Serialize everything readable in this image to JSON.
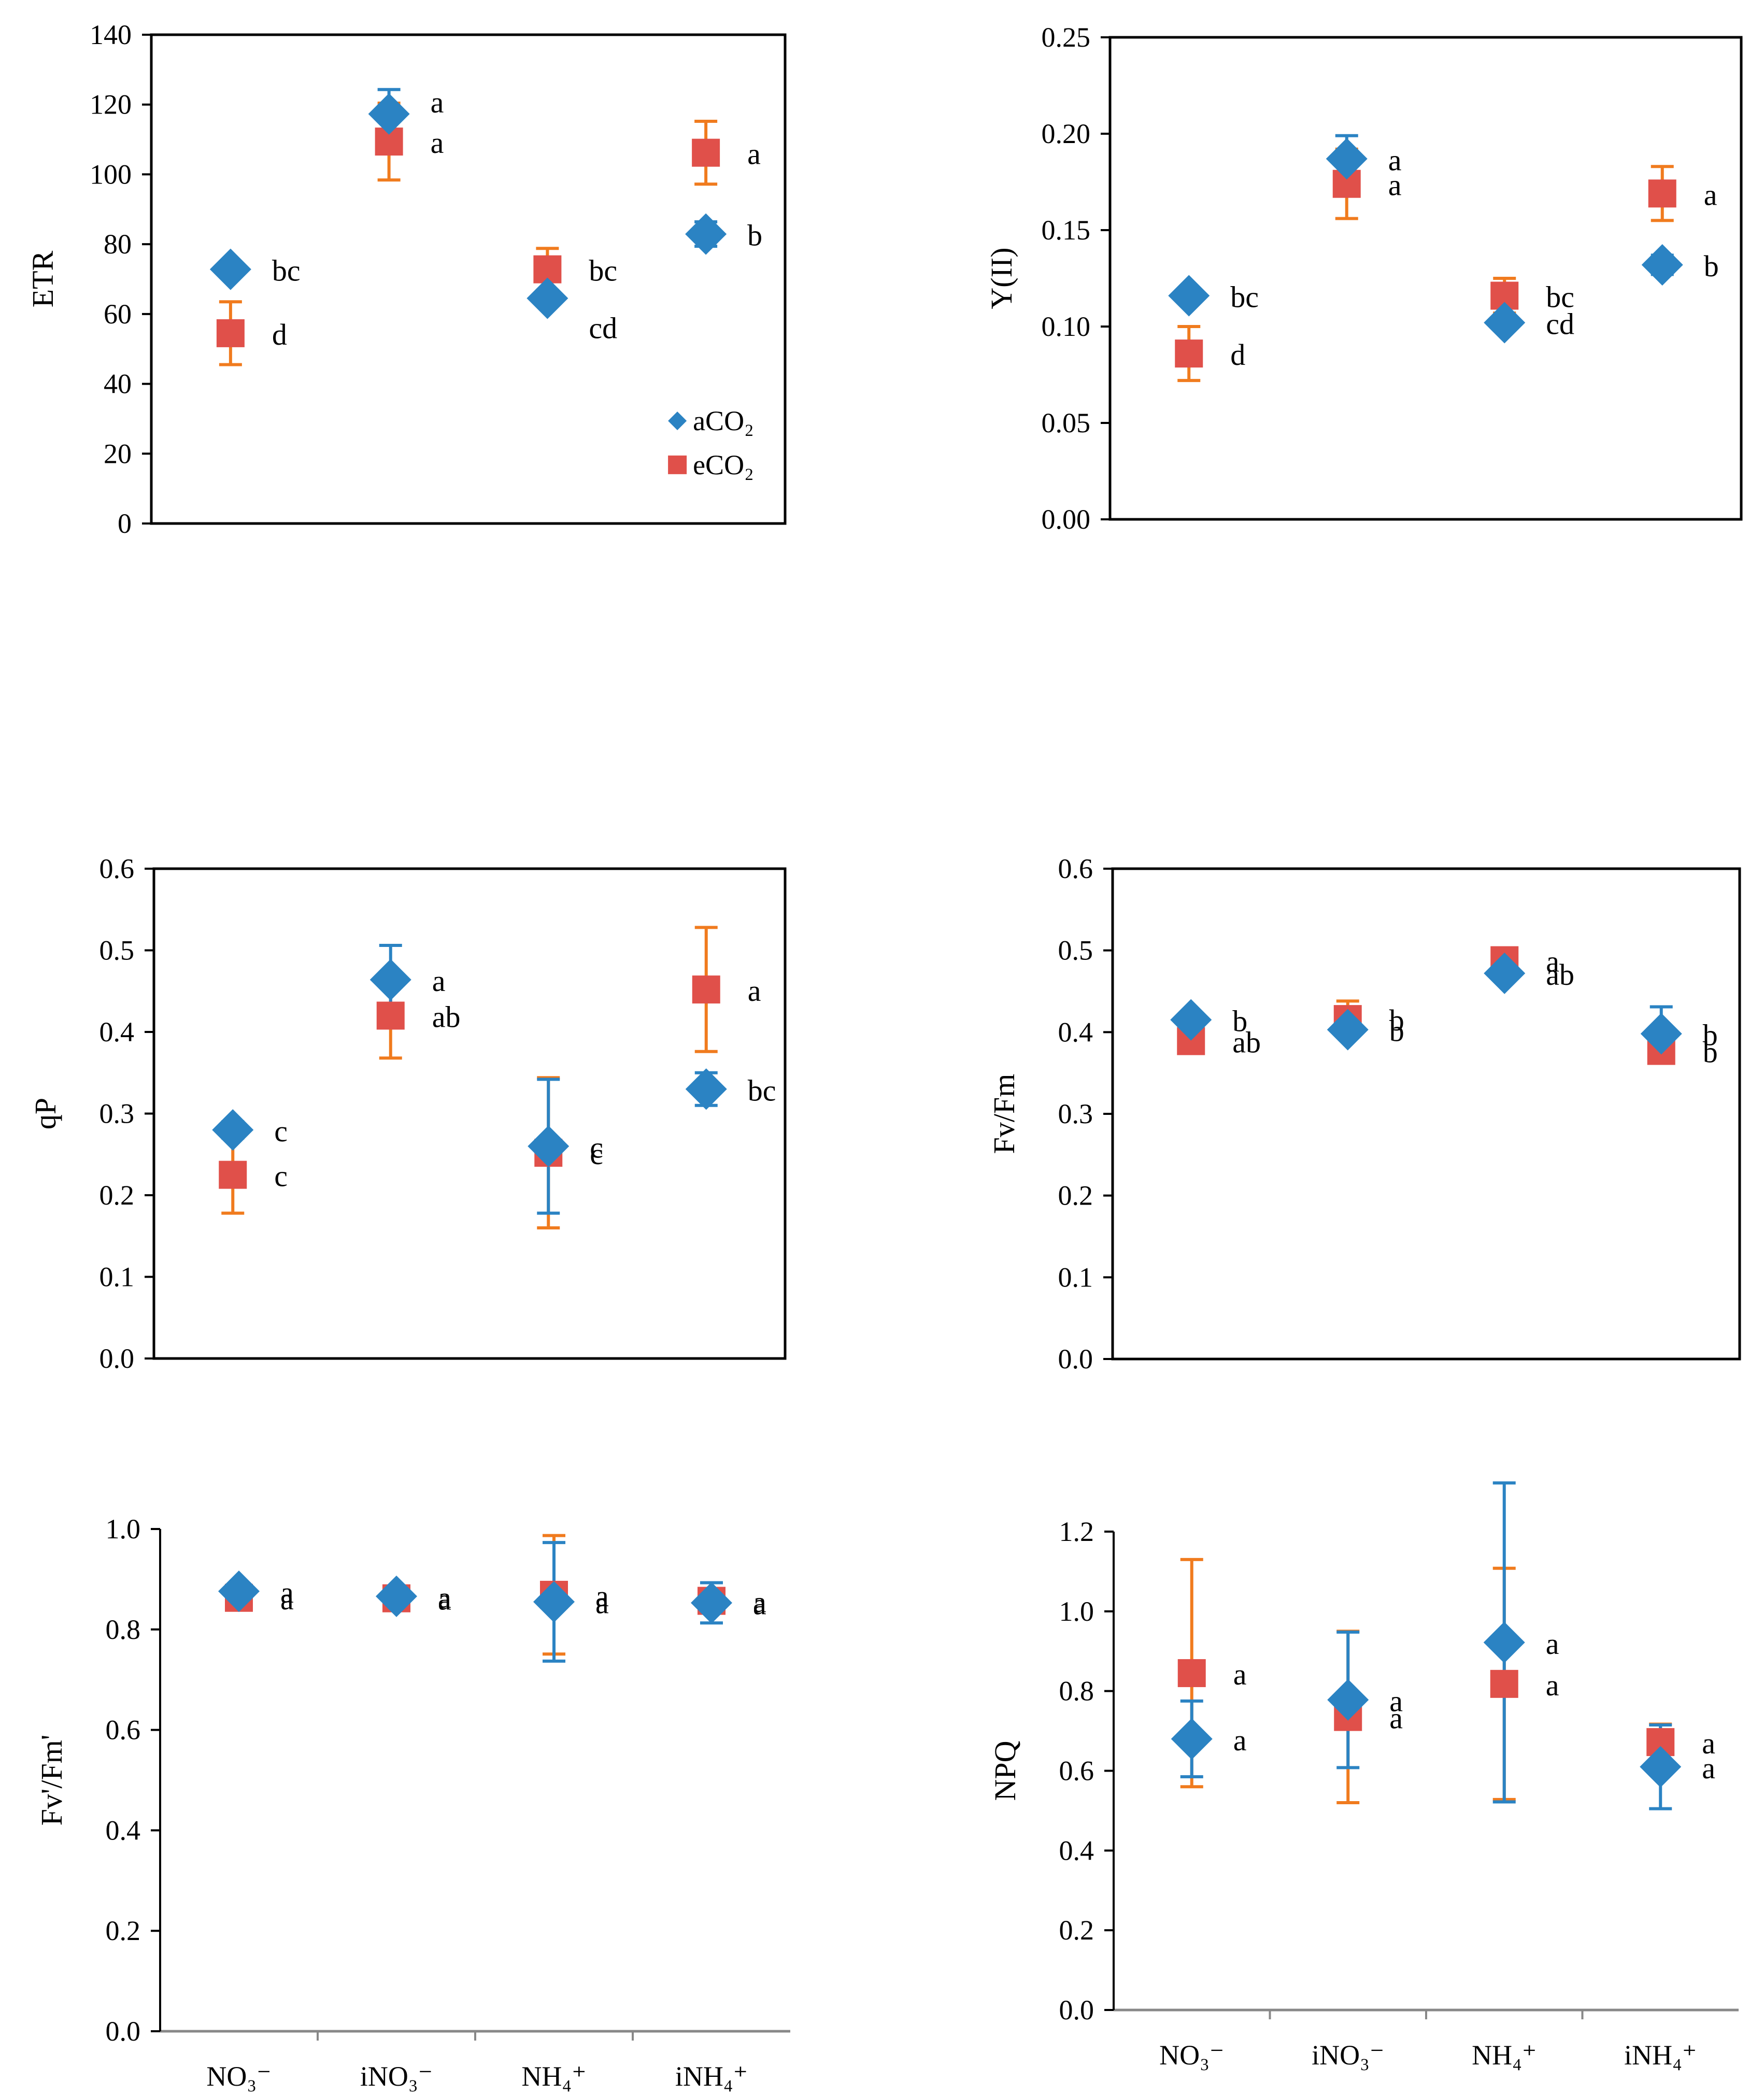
{
  "legend": [
    {
      "name": "aCO₂",
      "color": "#2b83c3",
      "marker": "diamond"
    },
    {
      "name": "eCO₂",
      "color": "#e0504a",
      "marker": "square"
    }
  ],
  "error_colors": {
    "aCO2": "#2b83c3",
    "eCO2": "#f07b1e"
  },
  "chart_data": [
    {
      "type": "scatter",
      "panel": "top-left",
      "ylabel": "ETR",
      "ylim": [
        0,
        140
      ],
      "yticks": [
        "0",
        "20",
        "40",
        "60",
        "80",
        "100",
        "120",
        "140"
      ],
      "categories": [
        "NO₃⁻",
        "iNO₃⁻",
        "NH₄⁺",
        "iNH₄⁺"
      ],
      "show_xticklabels": false,
      "category_ticks": false,
      "legend_position": "bottom-right",
      "series": [
        {
          "name": "aCO₂",
          "values": [
            72.8,
            117.3,
            64.5,
            82.9
          ],
          "errors": [
            2,
            7,
            2,
            3.5
          ],
          "letters": [
            "bc",
            "a",
            "cd",
            "b"
          ]
        },
        {
          "name": "eCO₂",
          "values": [
            54.5,
            109.4,
            72.8,
            106.2
          ],
          "errors": [
            9,
            11,
            6,
            9
          ],
          "letters": [
            "d",
            "a",
            "bc",
            "a"
          ]
        }
      ]
    },
    {
      "type": "scatter",
      "panel": "top-right",
      "ylabel": "Y(II)",
      "ylim": [
        0,
        0.25
      ],
      "yticks": [
        "0.00",
        "0.05",
        "0.10",
        "0.15",
        "0.20",
        "0.25"
      ],
      "categories": [
        "NO₃⁻",
        "iNO₃⁻",
        "NH₄⁺",
        "iNH₄⁺"
      ],
      "show_xticklabels": false,
      "category_ticks": false,
      "series": [
        {
          "name": "aCO₂",
          "values": [
            0.116,
            0.187,
            0.102,
            0.132
          ],
          "errors": [
            0.003,
            0.012,
            0.003,
            0.005
          ],
          "letters": [
            "bc",
            "a",
            "cd",
            "b"
          ]
        },
        {
          "name": "eCO₂",
          "values": [
            0.086,
            0.174,
            0.116,
            0.169
          ],
          "errors": [
            0.014,
            0.018,
            0.009,
            0.014
          ],
          "letters": [
            "d",
            "a",
            "bc",
            "a"
          ]
        }
      ]
    },
    {
      "type": "scatter",
      "panel": "middle-left",
      "ylabel": "qP",
      "ylim": [
        0,
        0.6
      ],
      "yticks": [
        "0.0",
        "0.1",
        "0.2",
        "0.3",
        "0.4",
        "0.5",
        "0.6"
      ],
      "categories": [
        "NO₃⁻",
        "iNO₃⁻",
        "NH₄⁺",
        "iNH₄⁺"
      ],
      "show_xticklabels": false,
      "category_ticks": false,
      "series": [
        {
          "name": "aCO₂",
          "values": [
            0.28,
            0.464,
            0.26,
            0.33
          ],
          "errors": [
            0.01,
            0.042,
            0.082,
            0.02
          ],
          "letters": [
            "c",
            "a",
            "c",
            "bc"
          ]
        },
        {
          "name": "eCO₂",
          "values": [
            0.225,
            0.42,
            0.252,
            0.452
          ],
          "errors": [
            0.047,
            0.052,
            0.092,
            0.076
          ],
          "letters": [
            "c",
            "ab",
            "c",
            "a"
          ]
        }
      ]
    },
    {
      "type": "scatter",
      "panel": "middle-right",
      "ylabel": "Fv/Fm",
      "ylim": [
        0,
        0.6
      ],
      "yticks": [
        "0.0",
        "0.1",
        "0.2",
        "0.3",
        "0.4",
        "0.5",
        "0.6"
      ],
      "categories": [
        "NO₃⁻",
        "iNO₃⁻",
        "NH₄⁺",
        "iNH₄⁺"
      ],
      "show_xticklabels": false,
      "category_ticks": false,
      "series": [
        {
          "name": "aCO₂",
          "values": [
            0.415,
            0.403,
            0.472,
            0.398
          ],
          "errors": [
            0.005,
            0.005,
            0.005,
            0.033
          ],
          "letters": [
            "b",
            "b",
            "ab",
            "b"
          ]
        },
        {
          "name": "eCO₂",
          "values": [
            0.389,
            0.416,
            0.488,
            0.377
          ],
          "errors": [
            0.005,
            0.022,
            0.008,
            0.015
          ],
          "letters": [
            "ab",
            "b",
            "a",
            "b"
          ]
        }
      ]
    },
    {
      "type": "scatter",
      "panel": "bottom-left",
      "ylabel": "Fv'/Fm'",
      "ylim": [
        0,
        1.0
      ],
      "yticks": [
        "0.0",
        "0.2",
        "0.4",
        "0.6",
        "0.8",
        "1.0"
      ],
      "categories": [
        "NO₃⁻",
        "iNO₃⁻",
        "NH₄⁺",
        "iNH₄⁺"
      ],
      "show_xticklabels": true,
      "category_ticks": true,
      "series": [
        {
          "name": "aCO₂",
          "values": [
            0.876,
            0.866,
            0.855,
            0.853
          ],
          "errors": [
            0.01,
            0.01,
            0.118,
            0.04
          ],
          "letters": [
            "a",
            "a",
            "a",
            "a"
          ]
        },
        {
          "name": "eCO₂",
          "values": [
            0.863,
            0.862,
            0.869,
            0.857
          ],
          "errors": [
            0.01,
            0.01,
            0.118,
            0.01
          ],
          "letters": [
            "a",
            "a",
            "a",
            "a"
          ]
        }
      ]
    },
    {
      "type": "scatter",
      "panel": "bottom-right",
      "ylabel": "NPQ",
      "ylim": [
        0,
        1.2
      ],
      "yticks": [
        "0.0",
        "0.2",
        "0.4",
        "0.6",
        "0.8",
        "1.0",
        "1.2"
      ],
      "categories": [
        "NO₃⁻",
        "iNO₃⁻",
        "NH₄⁺",
        "iNH₄⁺"
      ],
      "show_xticklabels": true,
      "category_ticks": true,
      "series": [
        {
          "name": "aCO₂",
          "values": [
            0.68,
            0.778,
            0.922,
            0.61
          ],
          "errors": [
            0.095,
            0.17,
            0.4,
            0.105
          ],
          "letters": [
            "a",
            "a",
            "a",
            "a"
          ]
        },
        {
          "name": "eCO₂",
          "values": [
            0.845,
            0.735,
            0.818,
            0.672
          ],
          "errors": [
            0.285,
            0.215,
            0.29,
            0.045
          ],
          "letters": [
            "a",
            "a",
            "a",
            "a"
          ]
        }
      ]
    }
  ]
}
